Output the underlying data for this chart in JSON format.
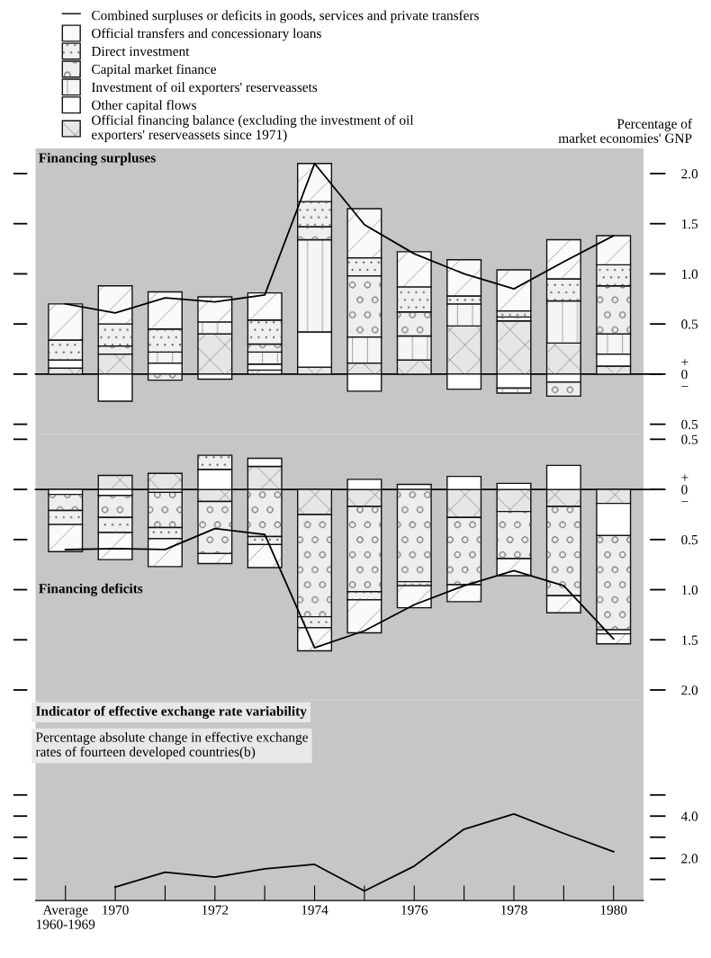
{
  "chart_data": [
    {
      "type": "bar",
      "stacked": true,
      "title": "Financing surpluses",
      "ylabel": "Percentage of\nmarket economies' GNP",
      "legend": "top left",
      "tick_labels": "y",
      "categories": [
        null,
        null,
        null,
        null,
        null,
        null,
        null,
        null,
        null,
        null,
        null,
        null
      ],
      "ylim": [
        -0.6,
        2.25
      ],
      "yticks": [
        {
          "value": -0.5,
          "label": "0.5"
        },
        {
          "value": -0.12,
          "label": "−"
        },
        0,
        {
          "value": 0.12,
          "label": "+"
        },
        0.5,
        {
          "value": 1.0,
          "label": "1.0"
        },
        1.5,
        {
          "value": 2.0,
          "label": "2.0"
        }
      ],
      "ref_lines": [
        {
          "axis": "y",
          "value": 0,
          "color": "#000000"
        }
      ],
      "series": [
        {
          "name": "Official financing balance (excluding the investment of oil\nexporters' reserveassets since 1971)",
          "color": "#e6e6e6",
          "values": [
            0.06,
            0.2,
            null,
            0.4,
            0.04,
            0.07,
            0.11,
            0.14,
            0.48,
            0.53,
            0.31,
            0.08
          ]
        },
        {
          "name": "Other capital flows",
          "color": "#ffffff",
          "values": [
            0.08,
            -0.27,
            0.11,
            -0.05,
            0.06,
            0.35,
            -0.17,
            null,
            -0.15,
            -0.14,
            -0.08,
            0.12
          ]
        },
        {
          "name": "Investment of oil exporters' reserveassets",
          "color": "#f5f5f5",
          "values": [
            null,
            null,
            0.11,
            0.12,
            0.12,
            0.92,
            0.26,
            0.24,
            0.22,
            -0.05,
            0.42,
            0.2
          ]
        },
        {
          "name": "Capital market finance",
          "color": "#eeeeee",
          "values": [
            null,
            0.08,
            -0.06,
            null,
            0.08,
            0.13,
            0.61,
            0.24,
            null,
            0.04,
            -0.14,
            0.48
          ]
        },
        {
          "name": "Direct investment",
          "color": "#f0f0f0",
          "values": [
            0.2,
            0.22,
            0.23,
            null,
            0.24,
            0.25,
            0.18,
            0.25,
            0.08,
            0.06,
            0.22,
            0.21
          ]
        },
        {
          "name": "Official transfers and concessionary loans",
          "color": "#fafafa",
          "values": [
            0.36,
            0.38,
            0.37,
            0.25,
            0.27,
            0.38,
            0.49,
            0.35,
            0.36,
            0.41,
            0.39,
            0.29
          ]
        },
        {
          "name": "Combined surpluses or deficits in goods, services and private transfers",
          "type": "line",
          "color": "#000000",
          "values": [
            0.7,
            0.61,
            0.76,
            0.72,
            0.79,
            2.1,
            1.49,
            1.2,
            1.0,
            0.85,
            1.12,
            1.38
          ]
        }
      ]
    },
    {
      "type": "bar",
      "stacked": true,
      "title": "Financing deficits",
      "tick_labels": "y",
      "categories": [
        null,
        null,
        null,
        null,
        null,
        null,
        null,
        null,
        null,
        null,
        null,
        null
      ],
      "ylim": [
        2.1,
        -0.55
      ],
      "yticks": [
        {
          "value": 2.0,
          "label": "2.0"
        },
        1.5,
        {
          "value": 1.0,
          "label": "1.0"
        },
        0.5,
        {
          "value": 0.12,
          "label": "−"
        },
        0,
        {
          "value": -0.12,
          "label": "+"
        },
        {
          "value": -0.5,
          "label": "0.5"
        }
      ],
      "ref_lines": [
        {
          "axis": "y",
          "value": 0,
          "color": "#000000"
        }
      ],
      "series": [
        {
          "color": "#e6e6e6",
          "values": [
            null,
            -0.14,
            -0.16,
            0.12,
            -0.23,
            0.25,
            0.17,
            null,
            0.28,
            0.22,
            0.17,
            0.14
          ]
        },
        {
          "color": "#ffffff",
          "values": [
            0.05,
            0.06,
            0.03,
            -0.2,
            -0.08,
            null,
            -0.1,
            -0.05,
            -0.13,
            -0.06,
            -0.24,
            0.32
          ]
        },
        {
          "color": "#eeeeee",
          "values": [
            0.16,
            0.22,
            0.35,
            0.52,
            0.47,
            1.02,
            0.85,
            0.92,
            0.67,
            0.47,
            0.89,
            0.94
          ]
        },
        {
          "color": "#f0f0f0",
          "values": [
            0.14,
            0.15,
            0.11,
            -0.14,
            0.08,
            0.11,
            0.08,
            0.04,
            null,
            null,
            null,
            0.04
          ]
        },
        {
          "color": "#fafafa",
          "values": [
            0.27,
            0.27,
            0.28,
            0.1,
            0.23,
            0.23,
            0.33,
            0.22,
            0.17,
            0.17,
            0.17,
            0.1
          ]
        },
        {
          "type": "line",
          "color": "#000000",
          "values": [
            0.6,
            0.59,
            0.6,
            0.39,
            0.45,
            1.58,
            1.41,
            1.15,
            0.96,
            0.81,
            0.96,
            1.49
          ]
        }
      ]
    },
    {
      "type": "line",
      "title": "Indicator of effective exchange rate variability",
      "subtitle": "Percentage absolute change in effective exchange\nrates of fourteen developed countries(b)",
      "categories": [
        "Average\n1960-1969",
        "1970",
        null,
        "1972",
        null,
        "1974",
        null,
        "1976",
        null,
        "1978",
        null,
        "1980"
      ],
      "ylim": [
        0,
        9.5
      ],
      "yticks": [
        {
          "value": 1,
          "label": null
        },
        {
          "value": 2,
          "label": "2.0"
        },
        {
          "value": 3,
          "label": null
        },
        {
          "value": 4,
          "label": "4.0"
        },
        {
          "value": 5,
          "label": null
        }
      ],
      "series": [
        {
          "color": "#000000",
          "values": [
            null,
            0.64,
            1.34,
            1.11,
            1.5,
            1.71,
            0.45,
            1.63,
            3.38,
            4.1,
            3.18,
            2.31
          ]
        }
      ]
    }
  ]
}
